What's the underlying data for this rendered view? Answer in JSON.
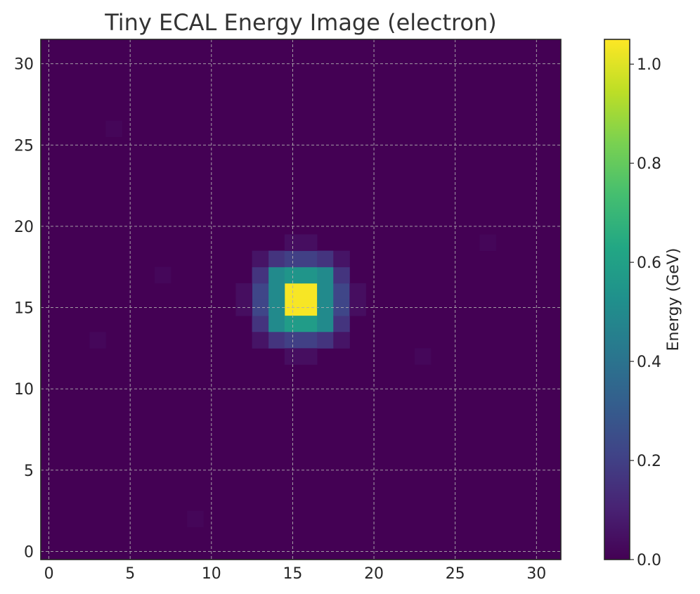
{
  "chart_data": {
    "type": "heatmap",
    "title": "Tiny ECAL Energy Image (electron)",
    "xlabel": "",
    "ylabel": "",
    "colorbar_label": "Energy (GeV)",
    "colormap": "viridis",
    "grid": true,
    "origin": "lower",
    "xlim": [
      -0.5,
      31.5
    ],
    "ylim": [
      -0.5,
      31.5
    ],
    "x_ticks": [
      0,
      5,
      10,
      15,
      20,
      25,
      30
    ],
    "y_ticks": [
      0,
      5,
      10,
      15,
      20,
      25,
      30
    ],
    "color_range": [
      0.0,
      1.05
    ],
    "colorbar_ticks": [
      0.0,
      0.2,
      0.4,
      0.6,
      0.8,
      1.0
    ],
    "colorbar_tick_labels": [
      "0.0",
      "0.2",
      "0.4",
      "0.6",
      "0.8",
      "1.0"
    ],
    "grid_size": [
      32,
      32
    ],
    "background_value": 0.0,
    "cells": [
      {
        "x": 15,
        "y": 15,
        "v": 1.04
      },
      {
        "x": 16,
        "y": 15,
        "v": 1.04
      },
      {
        "x": 15,
        "y": 16,
        "v": 1.04
      },
      {
        "x": 16,
        "y": 16,
        "v": 1.04
      },
      {
        "x": 14,
        "y": 17,
        "v": 0.5
      },
      {
        "x": 15,
        "y": 17,
        "v": 0.55
      },
      {
        "x": 16,
        "y": 17,
        "v": 0.55
      },
      {
        "x": 17,
        "y": 17,
        "v": 0.5
      },
      {
        "x": 14,
        "y": 14,
        "v": 0.5
      },
      {
        "x": 15,
        "y": 14,
        "v": 0.58
      },
      {
        "x": 16,
        "y": 14,
        "v": 0.58
      },
      {
        "x": 17,
        "y": 14,
        "v": 0.5
      },
      {
        "x": 14,
        "y": 15,
        "v": 0.5
      },
      {
        "x": 14,
        "y": 16,
        "v": 0.5
      },
      {
        "x": 17,
        "y": 15,
        "v": 0.5
      },
      {
        "x": 17,
        "y": 16,
        "v": 0.5
      },
      {
        "x": 13,
        "y": 14,
        "v": 0.16
      },
      {
        "x": 13,
        "y": 15,
        "v": 0.22
      },
      {
        "x": 13,
        "y": 16,
        "v": 0.22
      },
      {
        "x": 13,
        "y": 17,
        "v": 0.16
      },
      {
        "x": 18,
        "y": 14,
        "v": 0.16
      },
      {
        "x": 18,
        "y": 15,
        "v": 0.22
      },
      {
        "x": 18,
        "y": 16,
        "v": 0.22
      },
      {
        "x": 18,
        "y": 17,
        "v": 0.16
      },
      {
        "x": 14,
        "y": 18,
        "v": 0.16
      },
      {
        "x": 15,
        "y": 18,
        "v": 0.2
      },
      {
        "x": 16,
        "y": 18,
        "v": 0.2
      },
      {
        "x": 17,
        "y": 18,
        "v": 0.16
      },
      {
        "x": 14,
        "y": 13,
        "v": 0.16
      },
      {
        "x": 15,
        "y": 13,
        "v": 0.2
      },
      {
        "x": 16,
        "y": 13,
        "v": 0.2
      },
      {
        "x": 17,
        "y": 13,
        "v": 0.16
      },
      {
        "x": 13,
        "y": 13,
        "v": 0.06
      },
      {
        "x": 18,
        "y": 13,
        "v": 0.06
      },
      {
        "x": 13,
        "y": 18,
        "v": 0.06
      },
      {
        "x": 18,
        "y": 18,
        "v": 0.06
      },
      {
        "x": 12,
        "y": 15,
        "v": 0.04
      },
      {
        "x": 12,
        "y": 16,
        "v": 0.04
      },
      {
        "x": 19,
        "y": 15,
        "v": 0.04
      },
      {
        "x": 19,
        "y": 16,
        "v": 0.04
      },
      {
        "x": 15,
        "y": 12,
        "v": 0.04
      },
      {
        "x": 16,
        "y": 12,
        "v": 0.04
      },
      {
        "x": 15,
        "y": 19,
        "v": 0.04
      },
      {
        "x": 16,
        "y": 19,
        "v": 0.04
      },
      {
        "x": 3,
        "y": 13,
        "v": 0.02
      },
      {
        "x": 23,
        "y": 12,
        "v": 0.02
      },
      {
        "x": 7,
        "y": 17,
        "v": 0.02
      },
      {
        "x": 4,
        "y": 26,
        "v": 0.015
      },
      {
        "x": 27,
        "y": 19,
        "v": 0.015
      },
      {
        "x": 9,
        "y": 2,
        "v": 0.015
      }
    ]
  }
}
